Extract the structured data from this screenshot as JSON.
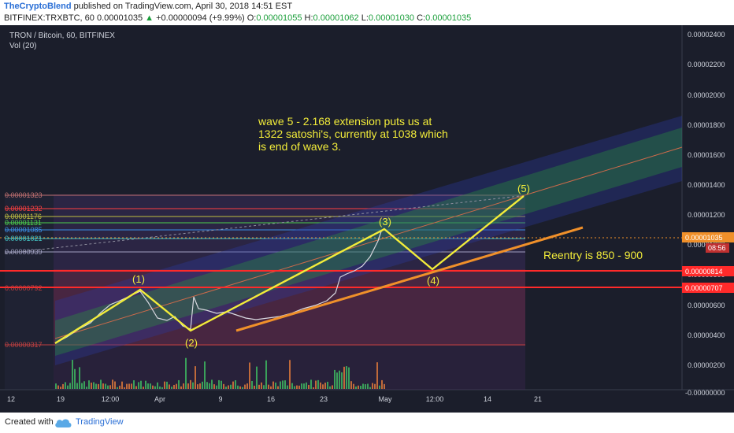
{
  "header": {
    "author": "TheCryptoBlend",
    "published": "published on TradingView.com, April 30, 2018 14:51 EST",
    "symbol": "BITFINEX:TRXBTC, 60",
    "last": "0.00001035",
    "change": "+0.00000094 (+9.99%)",
    "o_label": "O:",
    "o_value": "0.00001055",
    "h_label": "H:",
    "h_value": "0.00001062",
    "l_label": "L:",
    "l_value": "0.00001030",
    "c_label": "C:",
    "c_value": "0.00001035"
  },
  "chart": {
    "title": "TRON / Bitcoin, 60, BITFINEX",
    "vol_label": "Vol (20)",
    "annotation_lines": [
      "wave 5  - 2.168 extension puts us at",
      "1322 satoshi's, currently at 1038 which",
      "is end of wave 3."
    ],
    "reentry": "Reentry is 850 - 900",
    "wave_labels": [
      "(1)",
      "(2)",
      "(3)",
      "(4)",
      "(5)"
    ],
    "price_ticks": [
      "0.00002400",
      "0.00002200",
      "0.00002000",
      "0.00001800",
      "0.00001600",
      "0.00001400",
      "0.00001200",
      "0.00001000",
      "0.00000800",
      "0.00000600",
      "0.00000400",
      "0.00000200",
      "-0.00000000"
    ],
    "current_price_badge": "0.00001035",
    "countdown": "08:56",
    "level_badges": [
      "0.00000814",
      "0.00000707"
    ],
    "fib_left_labels": [
      "0.00001323",
      "0.00001232",
      "0.00001176",
      "0.00001131",
      "0.00001085",
      "0.00001021",
      "0.00000939",
      "0.00000792",
      "0.00000317"
    ],
    "time_ticks": [
      "12",
      "19",
      "12:00",
      "Apr",
      "9",
      "16",
      "23",
      "May",
      "12:00",
      "14",
      "21"
    ],
    "colors": {
      "bg": "#1b1e2b",
      "yellow": "#f2ec3a",
      "orange": "#f0902a",
      "red": "#ff2a2a",
      "fib_green": "#4dd04d",
      "fib_blue": "#3a8ee6",
      "purple": "#5b3a8e",
      "accent": "#2a6fd6"
    }
  },
  "footer": {
    "created": "Created with",
    "brand": "TradingView"
  }
}
